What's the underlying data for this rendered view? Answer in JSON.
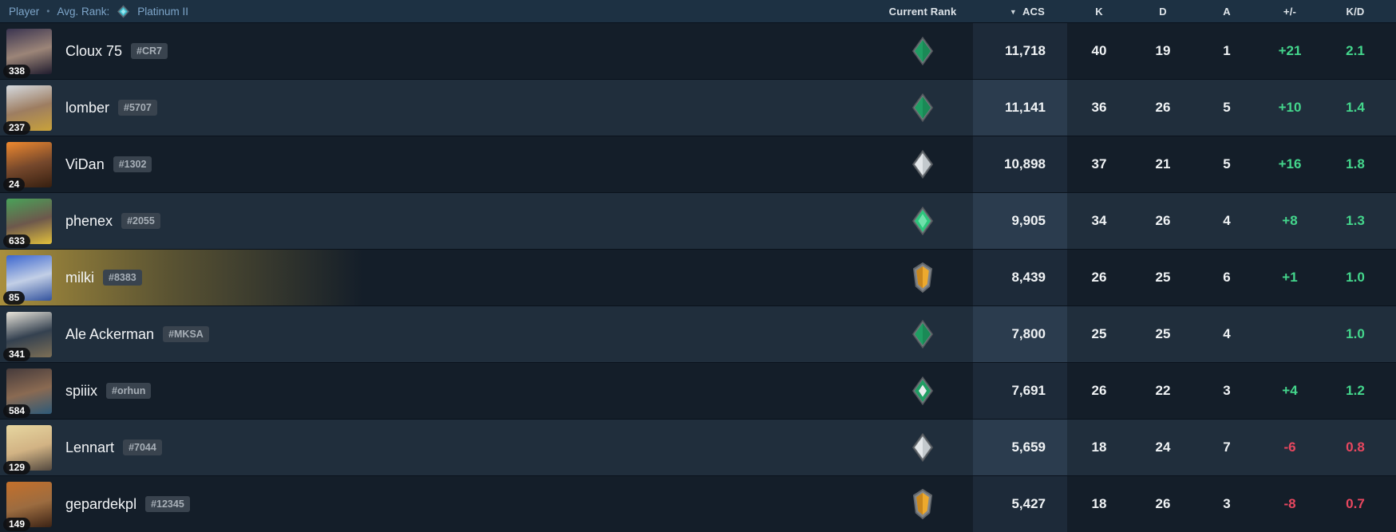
{
  "colors": {
    "topbar_bg": "#1d3143",
    "row_odd": "#141e29",
    "row_even": "#202e3c",
    "acs_cell_odd": "#1d2a39",
    "acs_cell_even": "#2b3c4e",
    "highlight_gold": "#b1953e",
    "positive": "#44d68c",
    "negative": "#e8475f",
    "topbar_text": "#7da5c9"
  },
  "top_bar": {
    "player_label": "Player",
    "separator": "•",
    "avg_rank_label": "Avg. Rank:",
    "avg_rank_icon": "platinum-rank-icon",
    "avg_rank_value": "Platinum II"
  },
  "columns": {
    "current_rank": "Current Rank",
    "sort_arrow": "▼",
    "acs": "ACS",
    "k": "K",
    "d": "D",
    "a": "A",
    "plus_minus": "+/-",
    "kd": "K/D"
  },
  "rows": [
    {
      "level": "338",
      "name": "Cloux 75",
      "tag": "#CR7",
      "rank_icon": "green-diamond",
      "acs": "11,718",
      "k": "40",
      "d": "19",
      "a": "1",
      "pm": "+21",
      "pm_trend": "up",
      "kd": "2.1",
      "kd_trend": "up",
      "highlight": false,
      "avatar_colors": [
        "#3a3450",
        "#9c8578",
        "#201c2e"
      ]
    },
    {
      "level": "237",
      "name": "lomber",
      "tag": "#5707",
      "rank_icon": "green-diamond",
      "acs": "11,141",
      "k": "36",
      "d": "26",
      "a": "5",
      "pm": "+10",
      "pm_trend": "up",
      "kd": "1.4",
      "kd_trend": "up",
      "highlight": false,
      "avatar_colors": [
        "#d5dae0",
        "#9d7d61",
        "#c9a23a"
      ]
    },
    {
      "level": "24",
      "name": "ViDan",
      "tag": "#1302",
      "rank_icon": "silver-diamond",
      "acs": "10,898",
      "k": "37",
      "d": "21",
      "a": "5",
      "pm": "+16",
      "pm_trend": "up",
      "kd": "1.8",
      "kd_trend": "up",
      "highlight": false,
      "avatar_colors": [
        "#ef892f",
        "#76482c",
        "#361f10"
      ]
    },
    {
      "level": "633",
      "name": "phenex",
      "tag": "#2055",
      "rank_icon": "green-diamond-bright",
      "acs": "9,905",
      "k": "34",
      "d": "26",
      "a": "4",
      "pm": "+8",
      "pm_trend": "up",
      "kd": "1.3",
      "kd_trend": "up",
      "highlight": false,
      "avatar_colors": [
        "#49a259",
        "#6d584c",
        "#e2c03c"
      ]
    },
    {
      "level": "85",
      "name": "milki",
      "tag": "#8383",
      "rank_icon": "gold-shield",
      "acs": "8,439",
      "k": "26",
      "d": "25",
      "a": "6",
      "pm": "+1",
      "pm_trend": "up",
      "kd": "1.0",
      "kd_trend": "up",
      "highlight": true,
      "avatar_colors": [
        "#3b66cf",
        "#c2cfe6",
        "#33539e"
      ]
    },
    {
      "level": "341",
      "name": "Ale Ackerman",
      "tag": "#MKSA",
      "rank_icon": "green-diamond",
      "acs": "7,800",
      "k": "25",
      "d": "25",
      "a": "4",
      "pm": "",
      "pm_trend": "none",
      "kd": "1.0",
      "kd_trend": "up",
      "highlight": false,
      "avatar_colors": [
        "#e9e5db",
        "#55607160",
        "#7d6f56"
      ]
    },
    {
      "level": "584",
      "name": "spiiix",
      "tag": "#orhun",
      "rank_icon": "green-diamond-core",
      "acs": "7,691",
      "k": "26",
      "d": "22",
      "a": "3",
      "pm": "+4",
      "pm_trend": "up",
      "kd": "1.2",
      "kd_trend": "up",
      "highlight": false,
      "avatar_colors": [
        "#453a3b",
        "#8a6a52",
        "#2e5a78"
      ]
    },
    {
      "level": "129",
      "name": "Lennart",
      "tag": "#7044",
      "rank_icon": "silver-diamond",
      "acs": "5,659",
      "k": "18",
      "d": "24",
      "a": "7",
      "pm": "-6",
      "pm_trend": "down",
      "kd": "0.8",
      "kd_trend": "down",
      "highlight": false,
      "avatar_colors": [
        "#e6d6a0",
        "#d2b384",
        "#53493f"
      ]
    },
    {
      "level": "149",
      "name": "gepardekpl",
      "tag": "#12345",
      "rank_icon": "gold-shield",
      "acs": "5,427",
      "k": "18",
      "d": "26",
      "a": "3",
      "pm": "-8",
      "pm_trend": "down",
      "kd": "0.7",
      "kd_trend": "down",
      "highlight": false,
      "avatar_colors": [
        "#c4702b",
        "#9c6c40",
        "#3c2315"
      ]
    }
  ]
}
